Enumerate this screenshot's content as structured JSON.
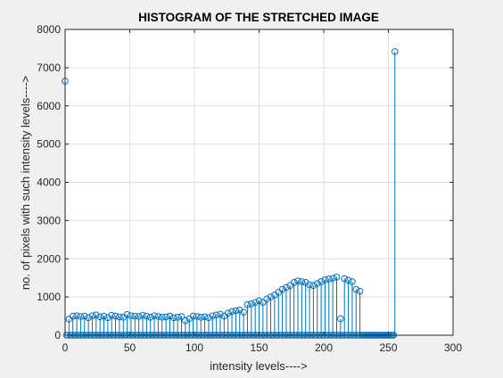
{
  "chart_data": {
    "type": "stem",
    "title": "HISTOGRAM OF THE STRETCHED IMAGE",
    "xlabel": "intensity levels---->",
    "ylabel": "no. of pixels with such intensity levels---->",
    "xlim": [
      0,
      300
    ],
    "ylim": [
      0,
      8000
    ],
    "xticks": [
      "0",
      "50",
      "100",
      "150",
      "200",
      "250",
      "300"
    ],
    "yticks": [
      "0",
      "1000",
      "2000",
      "3000",
      "4000",
      "5000",
      "6000",
      "7000",
      "8000"
    ],
    "grid": true,
    "series_color": "#0072bd",
    "nonzero_points": [
      [
        0,
        6650
      ],
      [
        3,
        420
      ],
      [
        6,
        500
      ],
      [
        9,
        510
      ],
      [
        12,
        490
      ],
      [
        15,
        500
      ],
      [
        18,
        460
      ],
      [
        21,
        510
      ],
      [
        24,
        530
      ],
      [
        27,
        480
      ],
      [
        30,
        500
      ],
      [
        33,
        460
      ],
      [
        36,
        520
      ],
      [
        39,
        500
      ],
      [
        42,
        480
      ],
      [
        45,
        470
      ],
      [
        48,
        540
      ],
      [
        51,
        510
      ],
      [
        54,
        500
      ],
      [
        57,
        490
      ],
      [
        60,
        520
      ],
      [
        63,
        500
      ],
      [
        66,
        470
      ],
      [
        69,
        510
      ],
      [
        72,
        490
      ],
      [
        75,
        470
      ],
      [
        78,
        480
      ],
      [
        81,
        500
      ],
      [
        84,
        460
      ],
      [
        87,
        470
      ],
      [
        90,
        490
      ],
      [
        93,
        380
      ],
      [
        96,
        430
      ],
      [
        99,
        500
      ],
      [
        102,
        490
      ],
      [
        105,
        470
      ],
      [
        108,
        480
      ],
      [
        111,
        460
      ],
      [
        114,
        510
      ],
      [
        117,
        530
      ],
      [
        120,
        550
      ],
      [
        123,
        500
      ],
      [
        126,
        580
      ],
      [
        129,
        620
      ],
      [
        132,
        640
      ],
      [
        135,
        660
      ],
      [
        138,
        600
      ],
      [
        141,
        800
      ],
      [
        144,
        820
      ],
      [
        147,
        860
      ],
      [
        150,
        900
      ],
      [
        153,
        860
      ],
      [
        156,
        950
      ],
      [
        159,
        1000
      ],
      [
        162,
        1050
      ],
      [
        165,
        1120
      ],
      [
        168,
        1200
      ],
      [
        171,
        1250
      ],
      [
        174,
        1300
      ],
      [
        177,
        1380
      ],
      [
        180,
        1420
      ],
      [
        183,
        1400
      ],
      [
        186,
        1380
      ],
      [
        189,
        1320
      ],
      [
        192,
        1300
      ],
      [
        195,
        1350
      ],
      [
        198,
        1400
      ],
      [
        201,
        1450
      ],
      [
        204,
        1470
      ],
      [
        207,
        1490
      ],
      [
        210,
        1520
      ],
      [
        213,
        430
      ],
      [
        216,
        1480
      ],
      [
        219,
        1440
      ],
      [
        222,
        1400
      ],
      [
        225,
        1200
      ],
      [
        228,
        1150
      ],
      [
        255,
        7420
      ]
    ]
  }
}
